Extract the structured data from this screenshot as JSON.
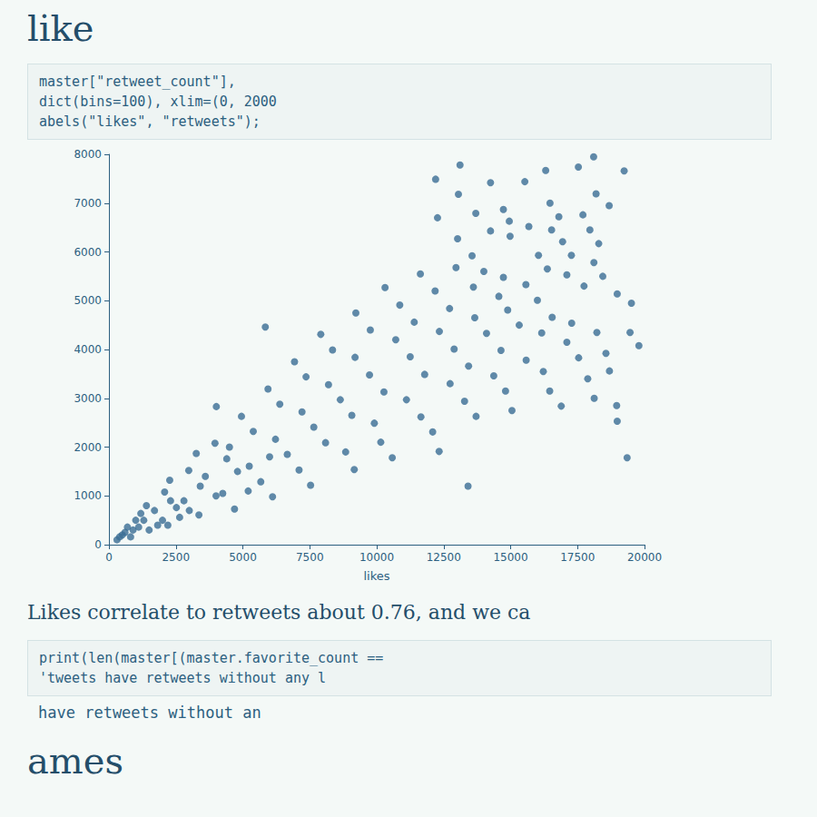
{
  "heading": "like",
  "code": [
    "master[\"retweet_count\"],",
    "dict(bins=100), xlim=(0, 2000",
    "abels(\"likes\", \"retweets\");"
  ],
  "chart_data": {
    "type": "scatter",
    "xlabel": "likes",
    "color": "#3a6d93",
    "marker": "circle",
    "xlim": [
      0,
      20000
    ],
    "xticks": [
      0,
      2500,
      5000,
      7500,
      10000,
      12500,
      15000,
      17500,
      20000
    ],
    "ylim": [
      0,
      8000
    ],
    "yticks": [
      0,
      1000,
      2000,
      3000,
      4000,
      5000,
      6000,
      7000,
      8000
    ],
    "x": [
      18100,
      19240,
      16310,
      17530,
      18190,
      18680,
      15530,
      16470,
      16800,
      17700,
      17960,
      18290,
      13110,
      14250,
      14730,
      14950,
      15680,
      16530,
      16940,
      17270,
      18110,
      18440,
      12200,
      13050,
      13700,
      14250,
      14980,
      16040,
      16370,
      17100,
      17740,
      18980,
      19510,
      19460,
      19790,
      12270,
      13020,
      13560,
      14000,
      14730,
      15570,
      16000,
      16550,
      17280,
      18220,
      18560,
      18690,
      12960,
      13610,
      14560,
      14890,
      15320,
      16160,
      17100,
      17540,
      17880,
      18120,
      18960,
      18980,
      19350,
      11630,
      12180,
      12720,
      13660,
      14100,
      14640,
      15580,
      16220,
      16460,
      16890,
      10310,
      10860,
      11400,
      12340,
      12890,
      13430,
      14370,
      14810,
      15050,
      9220,
      9760,
      10710,
      11250,
      11790,
      12740,
      13280,
      13710,
      5840,
      7910,
      8350,
      9190,
      9730,
      10270,
      11110,
      11650,
      12090,
      12330,
      6930,
      7360,
      8200,
      8640,
      9070,
      9910,
      10150,
      10580,
      13410,
      5940,
      6380,
      7210,
      7650,
      8090,
      8840,
      9160,
      4950,
      5390,
      6220,
      6660,
      7100,
      7530,
      3960,
      4400,
      5240,
      5670,
      6110,
      4010,
      2980,
      3410,
      4250,
      4690,
      2080,
      2520,
      3360,
      1190,
      1820,
      690,
      810,
      400,
      1110,
      2640,
      2270,
      3260,
      600,
      900,
      1300,
      1500,
      1700,
      2000,
      2300,
      1000,
      500,
      300,
      1400,
      2800,
      3000,
      2200,
      3600,
      4000,
      4800,
      5200,
      4500,
      6000
    ],
    "values": [
      7950,
      7660,
      7670,
      7740,
      7190,
      6950,
      7440,
      7000,
      6720,
      6760,
      6450,
      6170,
      7780,
      7420,
      6870,
      6630,
      6520,
      6450,
      6210,
      5930,
      5780,
      5500,
      7490,
      7180,
      6790,
      6430,
      6320,
      5930,
      5650,
      5530,
      5300,
      5140,
      4950,
      4350,
      4080,
      6700,
      6270,
      5920,
      5600,
      5480,
      5330,
      5010,
      4660,
      4540,
      4350,
      3920,
      3560,
      5680,
      5280,
      5090,
      4810,
      4500,
      4340,
      4150,
      3830,
      3400,
      3000,
      2850,
      2530,
      1780,
      5550,
      5200,
      4840,
      4650,
      4330,
      3980,
      3780,
      3550,
      3150,
      2840,
      5270,
      4910,
      4560,
      4370,
      4010,
      3660,
      3460,
      3150,
      2750,
      4750,
      4400,
      4200,
      3850,
      3490,
      3300,
      2940,
      2630,
      4460,
      4310,
      3990,
      3840,
      3480,
      3130,
      2970,
      2620,
      2310,
      1910,
      3750,
      3440,
      3280,
      2970,
      2650,
      2490,
      2100,
      1780,
      1200,
      3190,
      2880,
      2720,
      2410,
      2090,
      1900,
      1540,
      2630,
      2320,
      2160,
      1850,
      1530,
      1220,
      2080,
      1760,
      1610,
      1290,
      980,
      2830,
      1520,
      1200,
      1050,
      730,
      1080,
      760,
      610,
      640,
      400,
      360,
      160,
      160,
      360,
      560,
      1320,
      1870,
      250,
      300,
      500,
      300,
      700,
      500,
      900,
      500,
      200,
      100,
      800,
      900,
      700,
      400,
      1400,
      1000,
      1500,
      1100,
      2000,
      1800
    ]
  },
  "text": "Likes correlate to retweets about 0.76, and we ca",
  "code2": [
    "print(len(master[(master.favorite_count == ",
    "'tweets have retweets without any l"
  ],
  "output": "have retweets without an",
  "heading2": "ames"
}
